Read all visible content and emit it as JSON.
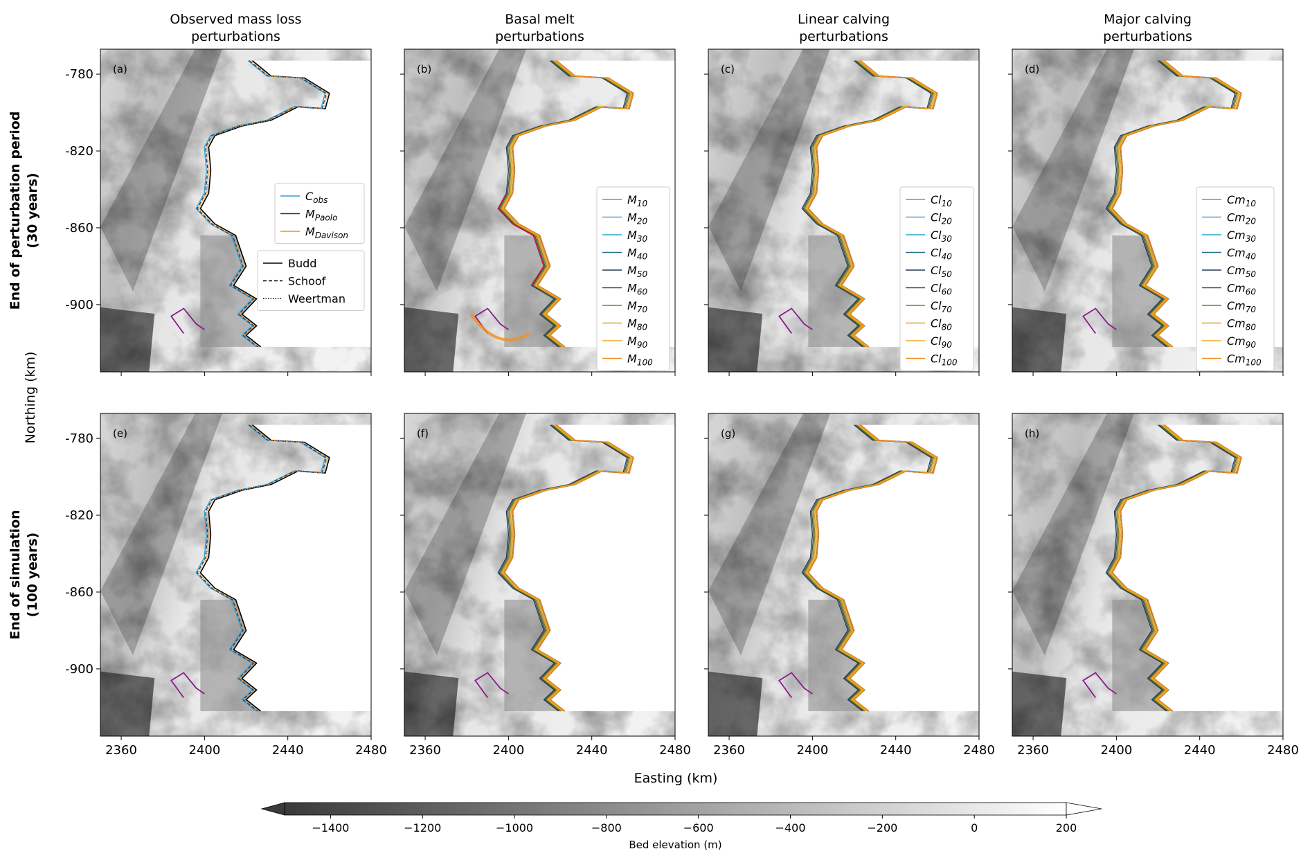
{
  "figure": {
    "column_titles": [
      [
        "Observed mass loss",
        "perturbations"
      ],
      [
        "Basal melt",
        "perturbations"
      ],
      [
        "Linear calving",
        "perturbations"
      ],
      [
        "Major calving",
        "perturbations"
      ]
    ],
    "row_titles": [
      [
        "End of perturbation period",
        "(30 years)"
      ],
      [
        "End of simulation",
        "(100 years)"
      ]
    ],
    "shared_xlabel": "Easting (km)",
    "shared_ylabel": "Northing (km)",
    "panel_labels": [
      "(a)",
      "(b)",
      "(c)",
      "(d)",
      "(e)",
      "(f)",
      "(g)",
      "(h)"
    ]
  },
  "chart_data": {
    "type": "contour map grid",
    "xlim": [
      2350,
      2480
    ],
    "ylim": [
      -935,
      -767
    ],
    "xticks": [
      2360,
      2400,
      2440,
      2480
    ],
    "xtick_labels": [
      "2360",
      "2400",
      "2440",
      "2480"
    ],
    "yticks": [
      -780,
      -820,
      -860,
      -900
    ],
    "ytick_labels": [
      "-780",
      "-820",
      "-860",
      "-900"
    ],
    "background_field": "Bed elevation (m)",
    "colorbar": {
      "label": "Bed elevation (m)",
      "vmin": -1500,
      "vmax": 200,
      "ticks": [
        -1400,
        -1200,
        -1000,
        -800,
        -600,
        -400,
        -200,
        0,
        200
      ],
      "tick_labels": [
        "−1400",
        "−1200",
        "−1000",
        "−800",
        "−600",
        "−400",
        "−200",
        "0",
        "200"
      ],
      "colors": [
        "#3a3a3a",
        "#ffffff"
      ],
      "extend": "both"
    },
    "legends": {
      "panel_a_series": [
        {
          "base": "C",
          "sub": "obs",
          "color": "#2a9fd6"
        },
        {
          "base": "M",
          "sub": "Paolo",
          "color": "#1f3b57"
        },
        {
          "base": "M",
          "sub": "Davison",
          "color": "#f28e1c"
        }
      ],
      "panel_a_styles": [
        {
          "label": "Budd",
          "dash": "solid"
        },
        {
          "label": "Schoof",
          "dash": "dashed"
        },
        {
          "label": "Weertman",
          "dash": "dotted"
        }
      ],
      "perturbation_levels": [
        "10",
        "20",
        "30",
        "40",
        "50",
        "60",
        "70",
        "80",
        "90",
        "100"
      ],
      "level_colors": [
        "#8c8c8c",
        "#5ca3b8",
        "#2aa4c8",
        "#1f6f8b",
        "#1f3b57",
        "#3d5a3a",
        "#8c7a1c",
        "#e0a41c",
        "#f5a623",
        "#f28e1c"
      ],
      "panel_b_prefix": "M",
      "panel_c_prefix": "Cl",
      "panel_d_prefix": "Cm"
    },
    "contour_colors": {
      "initial_grounding_line": "#8b1a8b",
      "ice_front": "#000000",
      "basal_melt_highlight": "#c8102e"
    },
    "grid": false
  }
}
